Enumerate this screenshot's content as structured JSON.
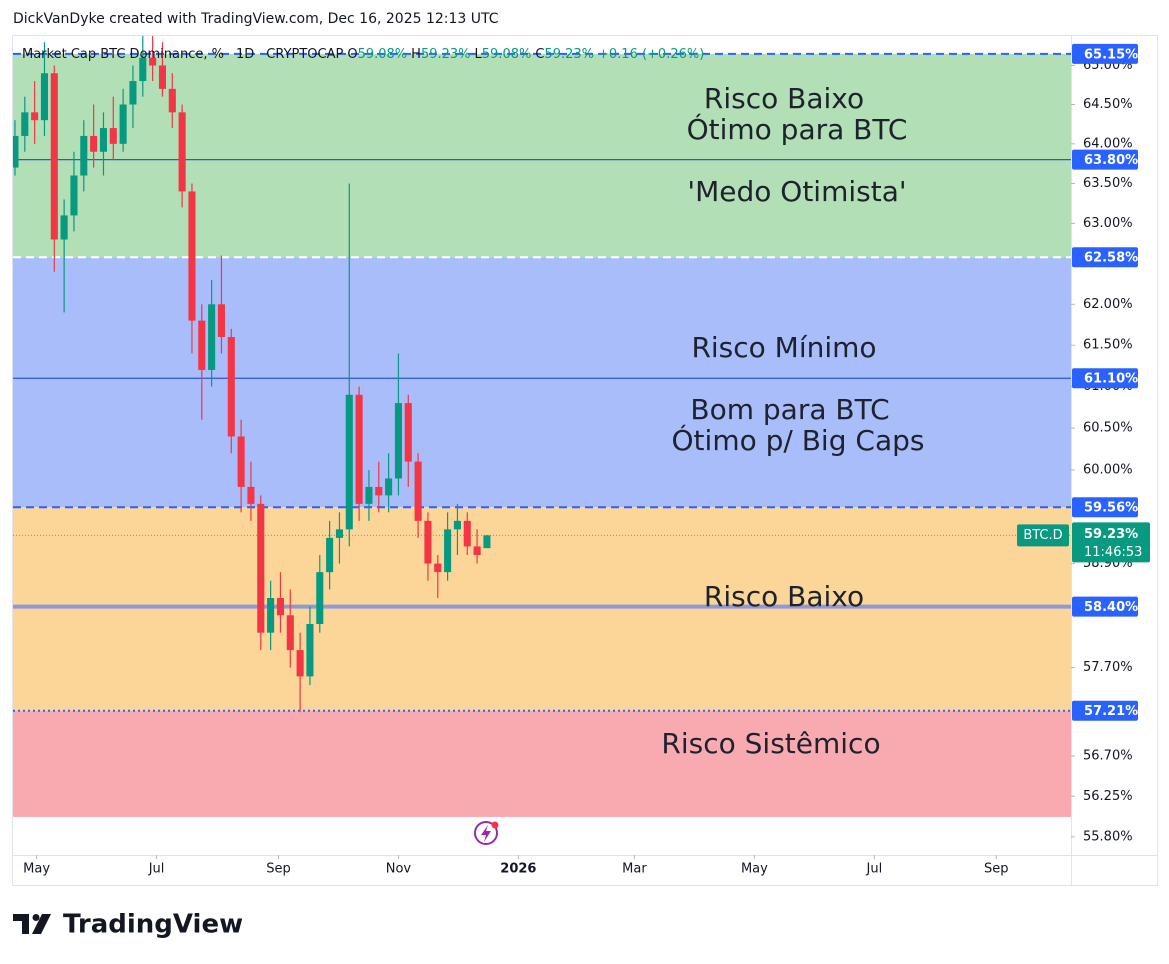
{
  "header": {
    "attribution": "DickVanDyke created with TradingView.com, Dec 16, 2025 12:13 UTC"
  },
  "footer": {
    "brand": "TradingView"
  },
  "chart_data": {
    "type": "candlestick",
    "legend": {
      "symbol": "Market Cap BTC Dominance, %",
      "interval": "1D",
      "exchange": "CRYPTOCAP",
      "ohlc": [
        {
          "label": "O",
          "value": "59.08%"
        },
        {
          "label": "H",
          "value": "59.23%"
        },
        {
          "label": "L",
          "value": "59.08%"
        },
        {
          "label": "C",
          "value": "59.23%"
        }
      ],
      "change": "+0.16 (+0.26%)"
    },
    "x": [
      "2025-04-20",
      "2025-04-25",
      "2025-04-30",
      "2025-05-05",
      "2025-05-10",
      "2025-05-15",
      "2025-05-20",
      "2025-05-25",
      "2025-05-30",
      "2025-06-04",
      "2025-06-09",
      "2025-06-14",
      "2025-06-19",
      "2025-06-24",
      "2025-06-29",
      "2025-07-04",
      "2025-07-09",
      "2025-07-14",
      "2025-07-19",
      "2025-07-24",
      "2025-07-29",
      "2025-08-03",
      "2025-08-08",
      "2025-08-13",
      "2025-08-18",
      "2025-08-23",
      "2025-08-28",
      "2025-09-02",
      "2025-09-07",
      "2025-09-12",
      "2025-09-17",
      "2025-09-22",
      "2025-09-27",
      "2025-10-02",
      "2025-10-07",
      "2025-10-12",
      "2025-10-17",
      "2025-10-22",
      "2025-10-27",
      "2025-11-01",
      "2025-11-06",
      "2025-11-11",
      "2025-11-16",
      "2025-11-21",
      "2025-11-26",
      "2025-12-01",
      "2025-12-06",
      "2025-12-11",
      "2025-12-16"
    ],
    "open": [
      63.7,
      64.1,
      64.4,
      64.3,
      64.9,
      62.8,
      63.1,
      63.6,
      64.1,
      63.9,
      64.2,
      64.0,
      64.5,
      64.8,
      65.1,
      65.0,
      64.7,
      64.4,
      63.4,
      61.8,
      61.2,
      62.0,
      61.6,
      60.4,
      59.8,
      59.6,
      58.1,
      58.5,
      58.3,
      57.9,
      57.6,
      58.2,
      58.8,
      59.2,
      59.3,
      60.9,
      59.6,
      59.8,
      59.7,
      59.9,
      60.8,
      60.1,
      59.4,
      58.9,
      58.8,
      59.3,
      59.4,
      59.1,
      59.08
    ],
    "high": [
      64.3,
      64.6,
      64.8,
      65.3,
      65.0,
      63.3,
      63.9,
      64.3,
      64.5,
      64.4,
      64.6,
      64.7,
      65.0,
      65.4,
      65.4,
      65.3,
      64.9,
      64.5,
      63.5,
      62.0,
      62.3,
      62.6,
      61.7,
      60.6,
      60.1,
      59.7,
      58.7,
      58.8,
      58.6,
      58.1,
      58.4,
      59.0,
      59.4,
      59.5,
      63.5,
      61.0,
      60.0,
      60.1,
      60.2,
      61.4,
      60.9,
      60.2,
      59.5,
      59.0,
      59.5,
      59.6,
      59.5,
      59.3,
      59.23
    ],
    "low": [
      63.6,
      63.9,
      64.0,
      64.1,
      62.4,
      61.9,
      62.9,
      63.4,
      63.7,
      63.6,
      63.8,
      63.9,
      64.2,
      64.6,
      64.8,
      64.6,
      64.2,
      63.2,
      61.4,
      60.6,
      61.0,
      61.4,
      60.2,
      59.5,
      59.4,
      57.9,
      57.9,
      58.1,
      57.7,
      57.2,
      57.5,
      58.1,
      58.6,
      58.9,
      59.1,
      59.4,
      59.4,
      59.5,
      59.5,
      59.7,
      59.8,
      59.2,
      58.7,
      58.5,
      58.7,
      59.0,
      59.0,
      58.9,
      59.08
    ],
    "close": [
      64.1,
      64.4,
      64.3,
      64.9,
      62.8,
      63.1,
      63.6,
      64.1,
      63.9,
      64.2,
      64.0,
      64.5,
      64.8,
      65.1,
      65.0,
      64.7,
      64.4,
      63.4,
      61.8,
      61.2,
      62.0,
      61.6,
      60.4,
      59.8,
      59.6,
      58.1,
      58.5,
      58.3,
      57.9,
      57.6,
      58.2,
      58.8,
      59.2,
      59.3,
      60.9,
      59.6,
      59.8,
      59.7,
      59.9,
      60.8,
      60.1,
      59.4,
      58.9,
      58.8,
      59.3,
      59.4,
      59.1,
      59.0,
      59.23
    ],
    "up_color": "#089981",
    "down_color": "#f23645",
    "log_scale": true,
    "ylim": [
      55.6,
      65.38
    ],
    "yticks": [
      {
        "value": 65,
        "label": "65.00%"
      },
      {
        "value": 64.5,
        "label": "64.50%"
      },
      {
        "value": 64,
        "label": "64.00%"
      },
      {
        "value": 63.5,
        "label": "63.50%"
      },
      {
        "value": 63,
        "label": "63.00%"
      },
      {
        "value": 62,
        "label": "62.00%"
      },
      {
        "value": 61.5,
        "label": "61.50%"
      },
      {
        "value": 61,
        "label": "61.00%"
      },
      {
        "value": 60.5,
        "label": "60.50%"
      },
      {
        "value": 60,
        "label": "60.00%"
      },
      {
        "value": 58.9,
        "label": "58.90%"
      },
      {
        "value": 57.7,
        "label": "57.70%"
      },
      {
        "value": 56.7,
        "label": "56.70%"
      },
      {
        "value": 56.25,
        "label": "56.25%"
      },
      {
        "value": 55.8,
        "label": "55.80%"
      }
    ],
    "xlim": [
      "2025-04-19",
      "2026-10-09"
    ],
    "xticks": [
      {
        "value": "2025-05-01",
        "label": "May"
      },
      {
        "value": "2025-07-01",
        "label": "Jul"
      },
      {
        "value": "2025-09-01",
        "label": "Sep"
      },
      {
        "value": "2025-11-01",
        "label": "Nov"
      },
      {
        "value": "2026-01-01",
        "label": "2026"
      },
      {
        "value": "2026-03-01",
        "label": "Mar"
      },
      {
        "value": "2026-05-01",
        "label": "May"
      },
      {
        "value": "2026-07-01",
        "label": "Jul"
      },
      {
        "value": "2026-09-01",
        "label": "Sep"
      }
    ],
    "bands": [
      {
        "from": 62.58,
        "to": 65.15,
        "color": "#b3dfb6"
      },
      {
        "from": 59.56,
        "to": 62.58,
        "color": "#a9bdfb"
      },
      {
        "from": 57.21,
        "to": 59.56,
        "color": "#fcd699"
      },
      {
        "from": 56.02,
        "to": 57.21,
        "color": "#f9aab1"
      }
    ],
    "levels": [
      {
        "value": 65.15,
        "label": "65.15%",
        "style": "dashed",
        "color": "#2962ff"
      },
      {
        "value": 63.8,
        "label": "63.80%",
        "style": "solid",
        "color": "#2a58d8"
      },
      {
        "value": 62.58,
        "label": "62.58%",
        "style": "dashed",
        "color": "#ffffff"
      },
      {
        "value": 61.1,
        "label": "61.10%",
        "style": "solid",
        "color": "#2a58d8"
      },
      {
        "value": 59.56,
        "label": "59.56%",
        "style": "dashed",
        "color": "#2962ff"
      },
      {
        "value": 58.4,
        "label": "58.40%",
        "style": "thick",
        "color": "#8d9ad6"
      },
      {
        "value": 57.21,
        "label": "57.21%",
        "style": "dotted",
        "color": "#2962ff"
      }
    ],
    "last_price": {
      "symbol": "BTC.D",
      "value": 59.23,
      "label": "59.23%",
      "countdown": "11:46:53"
    },
    "annotations": [
      "Risco Baixo",
      "Ótimo para BTC",
      "'Medo Otimista'",
      "Risco Mínimo",
      "Bom para BTC",
      "Ótimo p/ Big Caps",
      "Risco Baixo",
      "Risco Sistêmico"
    ]
  }
}
